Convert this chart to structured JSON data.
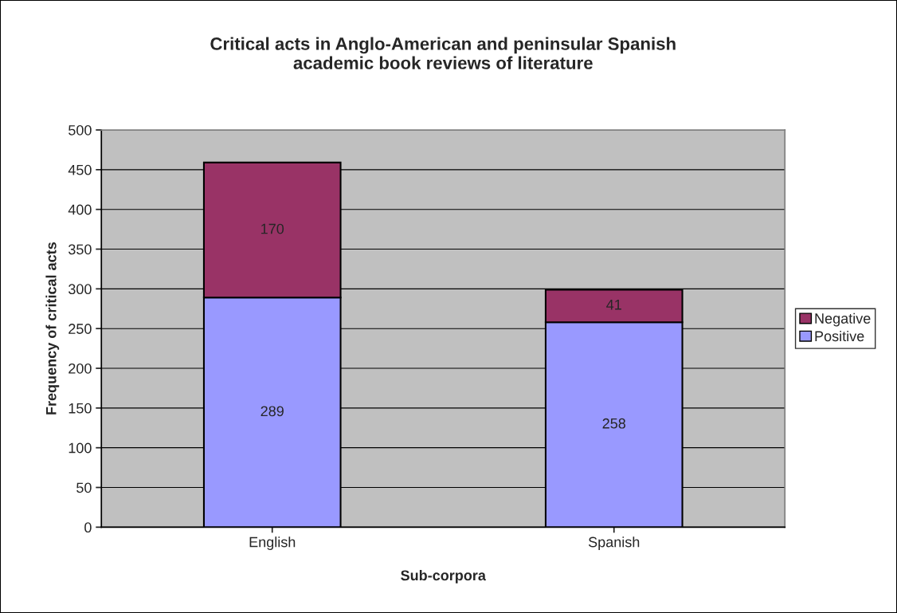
{
  "chart_data": {
    "type": "bar",
    "title": "Critical acts in Anglo-American and peninsular Spanish\nacademic book reviews of literature",
    "xlabel": "Sub-corpora",
    "ylabel": "Frequency of critical acts",
    "categories": [
      "English",
      "Spanish"
    ],
    "stacked": true,
    "series": [
      {
        "name": "Positive",
        "color": "#9999ff",
        "values": [
          289,
          258
        ]
      },
      {
        "name": "Negative",
        "color": "#993366",
        "values": [
          170,
          41
        ]
      }
    ],
    "ylim": [
      0,
      500
    ],
    "yticks": [
      0,
      50,
      100,
      150,
      200,
      250,
      300,
      350,
      400,
      450,
      500
    ],
    "grid": "y",
    "legend": "right",
    "data_labels": true
  }
}
